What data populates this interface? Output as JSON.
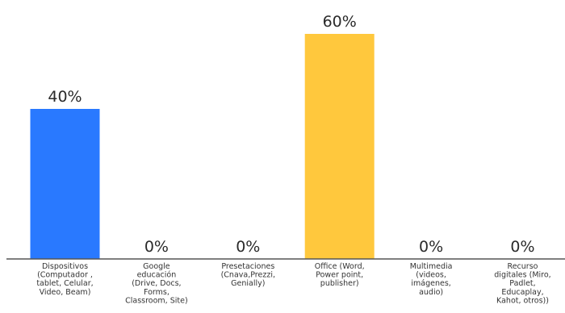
{
  "chart_data": {
    "type": "bar",
    "categories": [
      [
        "Dispositivos",
        "(Computador ,",
        "tablet, Celular,",
        "Video, Beam)"
      ],
      [
        "Google",
        "educación",
        "(Drive, Docs,",
        "Forms,",
        "Classroom, Site)"
      ],
      [
        "Presetaciones",
        "(Cnava,Prezzi,",
        "Genially)"
      ],
      [
        "Office (Word,",
        "Power point,",
        "publisher)"
      ],
      [
        "Multimedia",
        "(videos,",
        "imágenes,",
        "audio)"
      ],
      [
        "Recurso",
        "digitales (Miro,",
        "Padlet,",
        "Educaplay,",
        "Kahot, otros))"
      ]
    ],
    "values": [
      40,
      0,
      0,
      60,
      0,
      0
    ],
    "value_labels": [
      "40%",
      "0%",
      "0%",
      "60%",
      "0%",
      "0%"
    ],
    "ylim": [
      0,
      60
    ],
    "grid": false,
    "legend": "none",
    "bar_colors": [
      "#2979FF",
      "#2979FF",
      "#2979FF",
      "#FFC83D",
      "#2979FF",
      "#2979FF"
    ],
    "axis_color": "#555555"
  }
}
